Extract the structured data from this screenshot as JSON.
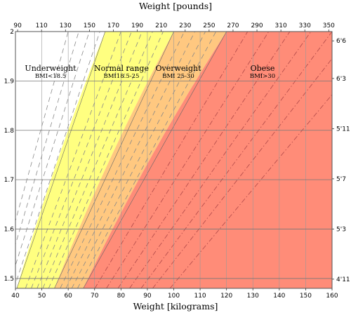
{
  "chart_data": {
    "type": "area",
    "title": "Weight [pounds]",
    "xlabel": "Weight [kilograms]",
    "ylabel": "",
    "xlim": [
      40,
      160
    ],
    "ylim": [
      1.48,
      2.0
    ],
    "x_ticks": [
      "40",
      "50",
      "60",
      "70",
      "80",
      "90",
      "100",
      "110",
      "120",
      "130",
      "140",
      "150",
      "160"
    ],
    "y_ticks": [
      "2",
      "1.9",
      "1.8",
      "1.7",
      "1.6",
      "1.5"
    ],
    "top_ticks": [
      "90",
      "110",
      "130",
      "150",
      "170",
      "190",
      "210",
      "230",
      "250",
      "270",
      "290",
      "310",
      "330",
      "350"
    ],
    "right_ticks": [
      "6'6",
      "6'3",
      "5'11",
      "5'7",
      "5'3",
      "4'11"
    ],
    "grid": true,
    "regions": [
      {
        "name": "Underweight",
        "range": "BMI<18.5",
        "bmi_min": 0,
        "bmi_max": 18.5,
        "color": "#ffffff"
      },
      {
        "name": "Normal range",
        "range": "BMI18.5-25",
        "bmi_min": 18.5,
        "bmi_max": 25,
        "color": "#ffff80"
      },
      {
        "name": "Overweight",
        "range": "BMI 25-30",
        "bmi_min": 25,
        "bmi_max": 30,
        "color": "#ffc880"
      },
      {
        "name": "Obese",
        "range": "BMI>30",
        "bmi_min": 30,
        "bmi_max": 100,
        "color": "#ff8c78"
      }
    ],
    "bmi_guide_lines": [
      15,
      16,
      17,
      18,
      20,
      21,
      22,
      23,
      24,
      26,
      27,
      28,
      29,
      32,
      34,
      36,
      38,
      40,
      42,
      45
    ]
  }
}
